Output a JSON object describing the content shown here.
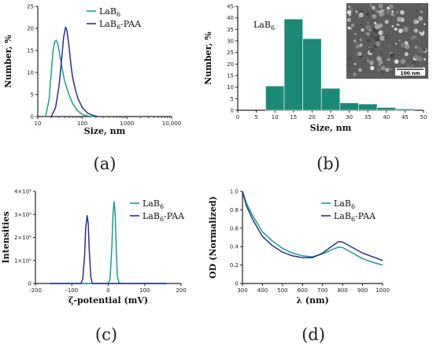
{
  "colors": {
    "teal": "#1a9e8a",
    "navy": "#2b2f8f",
    "bar": "#1a8a77"
  },
  "chart_data": [
    {
      "panel_label": "(a)",
      "type": "line",
      "x_scale": "log",
      "xlabel": "Size, nm",
      "ylabel": "Number, %",
      "xlim": [
        10,
        10000
      ],
      "ylim": [
        0,
        25
      ],
      "x_ticks": [
        10,
        100,
        1000,
        10000
      ],
      "x_tick_labels": [
        "10",
        "100",
        "1000",
        "10,000"
      ],
      "y_ticks": [
        0,
        5,
        10,
        15,
        20,
        25
      ],
      "series": [
        {
          "name": "LaB",
          "name_sub": "6",
          "color": "#1a9e8a",
          "x": [
            15,
            18,
            20,
            22,
            24,
            26,
            28,
            30,
            35,
            40,
            50,
            60,
            75,
            90,
            110,
            140,
            200
          ],
          "y": [
            0,
            4,
            10,
            15,
            17,
            17.3,
            16.5,
            15,
            11,
            8,
            5,
            3,
            1.5,
            0.8,
            0.3,
            0.1,
            0
          ]
        },
        {
          "name": "LaB-PAA",
          "name_sub": "6",
          "name_pre": "LaB",
          "name_post": "-PAA",
          "color": "#2b2f8f",
          "x": [
            20,
            25,
            30,
            35,
            38,
            42,
            45,
            50,
            55,
            60,
            70,
            80,
            100,
            130,
            170,
            220
          ],
          "y": [
            0,
            2,
            7,
            14,
            18,
            20.3,
            19.5,
            16,
            12,
            9,
            6,
            4,
            2,
            0.8,
            0.3,
            0
          ]
        }
      ]
    },
    {
      "panel_label": "(b)",
      "type": "bar",
      "xlabel": "Size, nm",
      "ylabel": "Number, %",
      "xlim": [
        0,
        50
      ],
      "ylim": [
        0,
        45
      ],
      "x_ticks": [
        0,
        5,
        10,
        15,
        20,
        25,
        30,
        35,
        40,
        45,
        50
      ],
      "y_ticks": [
        0,
        5,
        10,
        15,
        20,
        25,
        30,
        35,
        40,
        45
      ],
      "annotation": "LaB",
      "annotation_sub": "6",
      "inset_scale_label": "100 nm",
      "bins": [
        {
          "x0": 7.5,
          "x1": 12.5,
          "value": 10.5
        },
        {
          "x0": 12.5,
          "x1": 17.5,
          "value": 39.5
        },
        {
          "x0": 17.5,
          "x1": 22.5,
          "value": 31
        },
        {
          "x0": 22.5,
          "x1": 27.5,
          "value": 9.5
        },
        {
          "x0": 27.5,
          "x1": 32.5,
          "value": 3.2
        },
        {
          "x0": 32.5,
          "x1": 37.5,
          "value": 2.7
        },
        {
          "x0": 37.5,
          "x1": 42.5,
          "value": 1.2
        },
        {
          "x0": 42.5,
          "x1": 47.5,
          "value": 0.6
        }
      ]
    },
    {
      "panel_label": "(c)",
      "type": "line",
      "xlabel": "ζ-potential (mV)",
      "ylabel": "Intensities",
      "xlim": [
        -200,
        200
      ],
      "ylim": [
        0,
        400000
      ],
      "x_ticks": [
        -200,
        -100,
        0,
        100,
        200
      ],
      "y_ticks": [
        0,
        100000,
        200000,
        300000,
        400000
      ],
      "y_tick_labels": [
        "0",
        "1×10⁵",
        "2×10⁵",
        "3×10⁵",
        "4×10⁵"
      ],
      "series": [
        {
          "name": "LaB",
          "name_sub": "6",
          "color": "#1a9e8a",
          "x": [
            -160,
            0,
            5,
            10,
            13,
            16,
            19,
            22,
            25,
            30,
            160
          ],
          "y": [
            0,
            0,
            20000,
            160000,
            300000,
            355000,
            300000,
            150000,
            30000,
            0,
            0
          ]
        },
        {
          "name": "LaB-PAA",
          "name_sub": "6",
          "name_pre": "LaB",
          "name_post": "-PAA",
          "color": "#2b2f8f",
          "x": [
            -160,
            -75,
            -70,
            -65,
            -62,
            -58,
            -55,
            -52,
            -48,
            -44,
            160
          ],
          "y": [
            0,
            0,
            20000,
            120000,
            240000,
            295000,
            260000,
            140000,
            30000,
            0,
            0
          ]
        }
      ]
    },
    {
      "panel_label": "(d)",
      "type": "line",
      "xlabel": "λ (nm)",
      "ylabel": "OD (Normalized)",
      "xlim": [
        300,
        1000
      ],
      "ylim": [
        0,
        1.0
      ],
      "x_ticks": [
        300,
        400,
        500,
        600,
        700,
        800,
        900,
        1000
      ],
      "y_ticks": [
        0,
        0.2,
        0.4,
        0.6,
        0.8,
        1.0
      ],
      "y_tick_labels": [
        "0",
        "0.2",
        "0.4",
        "0.6",
        "0.8",
        "1.0"
      ],
      "series": [
        {
          "name": "LaB",
          "name_sub": "6",
          "color": "#1a9e8a",
          "x": [
            300,
            320,
            350,
            400,
            450,
            500,
            550,
            600,
            650,
            700,
            750,
            780,
            800,
            850,
            900,
            950,
            1000
          ],
          "y": [
            1.0,
            0.87,
            0.74,
            0.56,
            0.46,
            0.38,
            0.33,
            0.3,
            0.29,
            0.32,
            0.37,
            0.395,
            0.39,
            0.33,
            0.27,
            0.23,
            0.2
          ]
        },
        {
          "name": "LaB-PAA",
          "name_sub": "6",
          "name_pre": "LaB",
          "name_post": "-PAA",
          "color": "#2b2f8f",
          "x": [
            300,
            320,
            350,
            400,
            450,
            500,
            550,
            600,
            650,
            700,
            750,
            780,
            800,
            850,
            900,
            950,
            1000
          ],
          "y": [
            1.0,
            0.84,
            0.7,
            0.51,
            0.41,
            0.34,
            0.3,
            0.28,
            0.28,
            0.33,
            0.41,
            0.455,
            0.45,
            0.39,
            0.33,
            0.29,
            0.25
          ]
        }
      ]
    }
  ]
}
